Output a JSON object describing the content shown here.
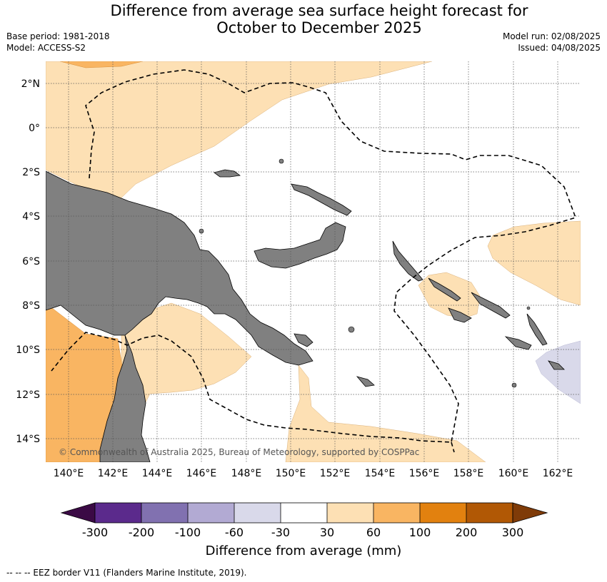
{
  "header": {
    "title_line1": "Difference from average sea surface height forecast for",
    "title_line2": "October to December 2025",
    "base_period": "Base period: 1981-2018",
    "model": "Model: ACCESS-S2",
    "model_run": "Model run: 02/08/2025",
    "issued": "Issued: 04/08/2025"
  },
  "map": {
    "lat_labels": [
      "2°N",
      "0°",
      "2°S",
      "4°S",
      "6°S",
      "8°S",
      "10°S",
      "12°S",
      "14°S"
    ],
    "lon_labels": [
      "140°E",
      "142°E",
      "144°E",
      "146°E",
      "148°E",
      "150°E",
      "152°E",
      "154°E",
      "156°E",
      "158°E",
      "160°E",
      "162°E"
    ],
    "copyright": "© Commonwealth of Australia 2025, Bureau of Meteorology, supported by COSPPac",
    "colors": {
      "land": "#808080",
      "ocean": "#ffffff",
      "light_orange": "#fde0b4",
      "mid_orange": "#f9b562",
      "light_purple": "#d9d9ea"
    }
  },
  "colorbar": {
    "label": "Difference from average (mm)",
    "ticks": [
      "-300",
      "-200",
      "-100",
      "-60",
      "-30",
      "30",
      "60",
      "100",
      "200",
      "300"
    ],
    "colors": [
      "#3b0a45",
      "#5b2a8c",
      "#8171b0",
      "#b2aad3",
      "#d9d9ea",
      "#ffffff",
      "#fde0b4",
      "#f9b562",
      "#e2810f",
      "#b15805",
      "#7f3b08"
    ]
  },
  "footer": {
    "legend_line": "--  --  -- EEZ border V11 (Flanders Marine Institute, 2019)."
  }
}
